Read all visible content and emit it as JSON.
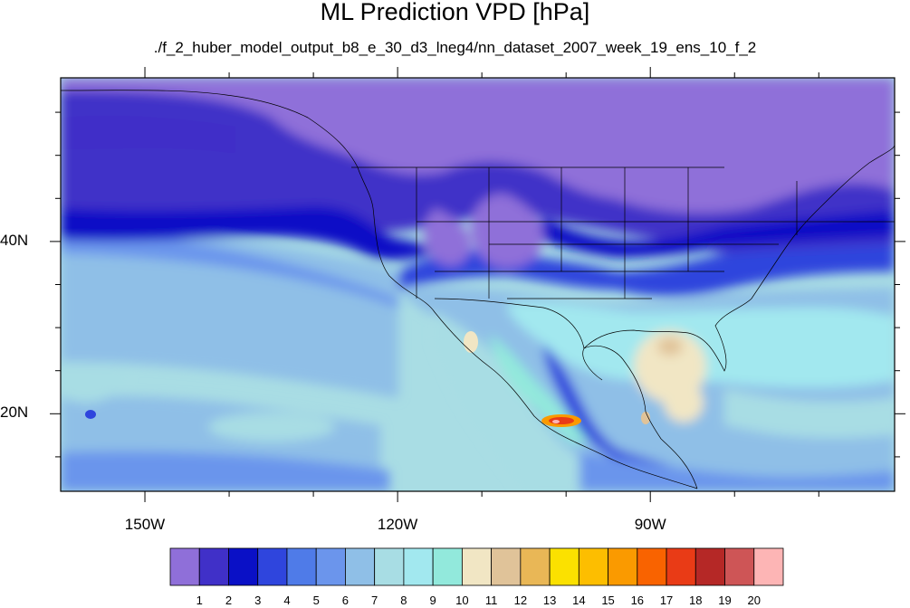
{
  "title": "ML Prediction VPD [hPa]",
  "subtitle": "./f_2_huber_model_output_b8_e_30_d3_lneg4/nn_dataset_2007_week_19_ens_10_f_2",
  "map": {
    "extent": {
      "lon": [
        -160,
        -61
      ],
      "lat": [
        11,
        59
      ]
    },
    "lon_ticks": [
      {
        "value": -150,
        "label": "150W"
      },
      {
        "value": -120,
        "label": "120W"
      },
      {
        "value": -90,
        "label": "90W"
      }
    ],
    "lat_ticks": [
      {
        "value": 40,
        "label": "40N"
      },
      {
        "value": 20,
        "label": "20N"
      }
    ]
  },
  "colorbar": {
    "labels": [
      "1",
      "2",
      "3",
      "4",
      "5",
      "6",
      "7",
      "8",
      "9",
      "10",
      "11",
      "12",
      "13",
      "14",
      "15",
      "16",
      "17",
      "18",
      "19",
      "20"
    ],
    "colors": [
      "#8f6fd9",
      "#4030c8",
      "#0a10c6",
      "#2f45dd",
      "#4f7be8",
      "#6b95ec",
      "#8fbfe7",
      "#a8dde4",
      "#a2e8ef",
      "#92e9dc",
      "#f1e6c4",
      "#e0c399",
      "#e9b756",
      "#fbe100",
      "#fdbe00",
      "#fa9a00",
      "#f96300",
      "#e93b16",
      "#b52826",
      "#ce5556",
      "#fdb5b5"
    ]
  }
}
